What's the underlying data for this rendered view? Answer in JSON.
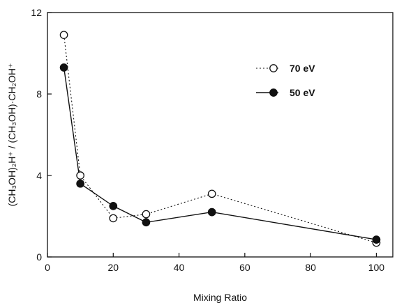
{
  "chart_data": {
    "type": "line",
    "xlabel": "Mixing Ratio",
    "ylabel": "(CH₃OH)₂H⁺ / (CH₃OH)·CH₂OH⁺",
    "xlim": [
      0,
      105
    ],
    "ylim": [
      0,
      12
    ],
    "xticks": [
      0,
      20,
      40,
      60,
      80,
      100
    ],
    "yticks": [
      0,
      4,
      8,
      12
    ],
    "grid": false,
    "legend_position": "top-right",
    "series": [
      {
        "name": "70 eV",
        "marker": "open-circle",
        "line": "dotted",
        "x": [
          5,
          10,
          20,
          30,
          50,
          100
        ],
        "y": [
          10.9,
          4.0,
          1.9,
          2.1,
          3.1,
          0.7
        ]
      },
      {
        "name": "50 eV",
        "marker": "filled-circle",
        "line": "solid",
        "x": [
          5,
          10,
          20,
          30,
          50,
          100
        ],
        "y": [
          9.3,
          3.6,
          2.5,
          1.7,
          2.2,
          0.85
        ]
      }
    ]
  }
}
